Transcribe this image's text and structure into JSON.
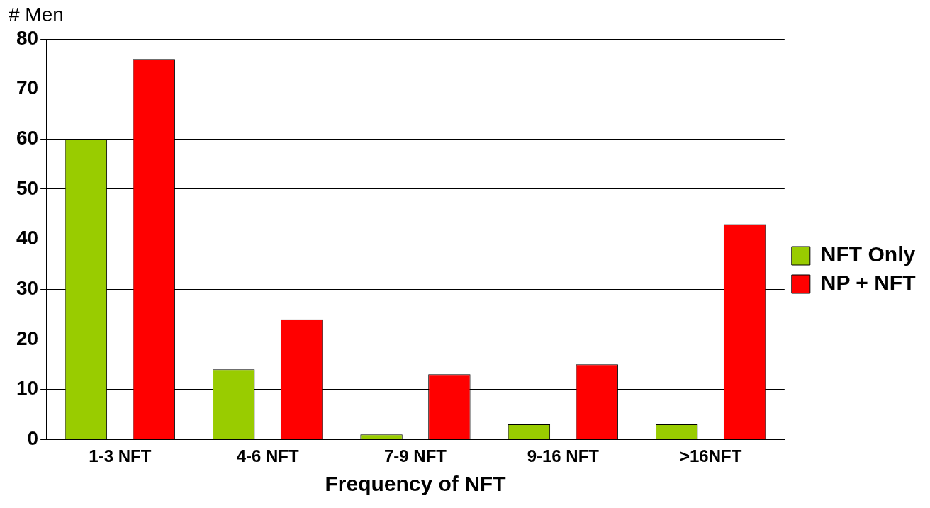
{
  "chart_data": {
    "type": "bar",
    "xlabel": "Frequency of NFT",
    "ylabel": "# Men",
    "categories": [
      "1-3 NFT",
      "4-6 NFT",
      "7-9 NFT",
      "9-16 NFT",
      ">16NFT"
    ],
    "series": [
      {
        "name": "NFT Only",
        "color": "#99cc00",
        "values": [
          60,
          14,
          1,
          3,
          3
        ]
      },
      {
        "name": "NP + NFT",
        "color": "#ff0000",
        "values": [
          76,
          24,
          13,
          15,
          43
        ]
      }
    ],
    "ylim": [
      0,
      80
    ],
    "yticks": [
      0,
      10,
      20,
      30,
      40,
      50,
      60,
      70,
      80
    ],
    "grid": "y",
    "legend": "right"
  }
}
